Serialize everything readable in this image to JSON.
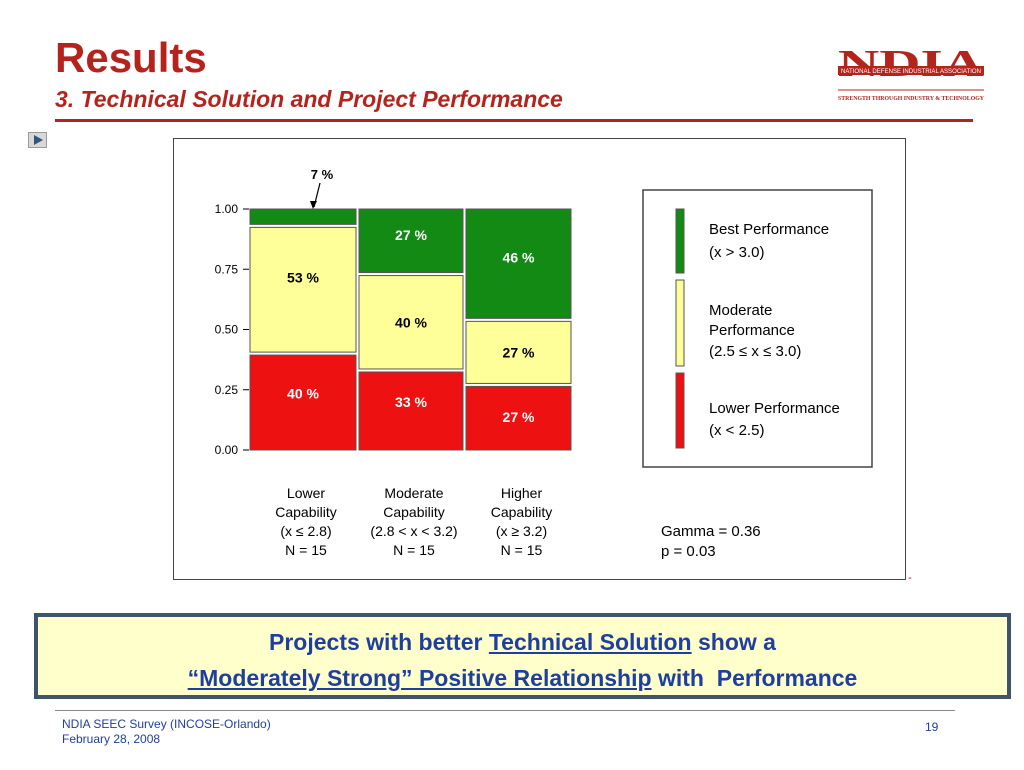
{
  "slide": {
    "title": "Results",
    "subtitle": "3. Technical Solution and Project Performance"
  },
  "logo": {
    "letters": "NDIA",
    "band_text": "NATIONAL DEFENSE INDUSTRIAL ASSOCIATION",
    "tagline": "STRENGTH THROUGH INDUSTRY & TECHNOLOGY",
    "color": "#b5241c"
  },
  "callout": {
    "line1_pre": "Projects with better ",
    "line1_u": "Technical Solution",
    "line1_post": " show a",
    "line2_u": "“Moderately Strong” Positive Relationship",
    "line2_post": " with  Performance"
  },
  "footer": {
    "left_line1": "NDIA SEEC Survey (INCOSE-Orlando)",
    "left_line2": "February 28, 2008",
    "page": "19"
  },
  "stray_mark": "-",
  "chart_data": {
    "type": "mosaic",
    "ylim": [
      0,
      1
    ],
    "yticks": [
      "1.00",
      "0.75",
      "0.50",
      "0.25",
      "0.00"
    ],
    "categories": [
      {
        "label": [
          "Lower",
          "Capability",
          "(x ≤ 2.8)",
          "N = 15"
        ],
        "values": {
          "lower": 0.4,
          "moderate": 0.53,
          "best": 0.07
        },
        "labels": {
          "lower": "40 %",
          "moderate": "53 %",
          "best": "7 %"
        }
      },
      {
        "label": [
          "Moderate",
          "Capability",
          "(2.8 < x < 3.2)",
          "N = 15"
        ],
        "values": {
          "lower": 0.33,
          "moderate": 0.4,
          "best": 0.27
        },
        "labels": {
          "lower": "33 %",
          "moderate": "40 %",
          "best": "27 %"
        }
      },
      {
        "label": [
          "Higher",
          "Capability",
          "(x ≥ 3.2)",
          "N = 15"
        ],
        "values": {
          "lower": 0.27,
          "moderate": 0.27,
          "best": 0.46
        },
        "labels": {
          "lower": "27 %",
          "moderate": "27 %",
          "best": "46 %"
        }
      }
    ],
    "series": [
      {
        "key": "best",
        "name": [
          "Best Performance",
          "(x > 3.0)"
        ],
        "color": "#138a13"
      },
      {
        "key": "moderate",
        "name": [
          "Moderate",
          "Performance",
          "(2.5 ≤  x ≤ 3.0)"
        ],
        "color": "#ffff99"
      },
      {
        "key": "lower",
        "name": [
          "Lower Performance",
          "(x < 2.5)"
        ],
        "color": "#ee1111"
      }
    ],
    "stats": [
      "Gamma = 0.36",
      "p = 0.03"
    ]
  }
}
